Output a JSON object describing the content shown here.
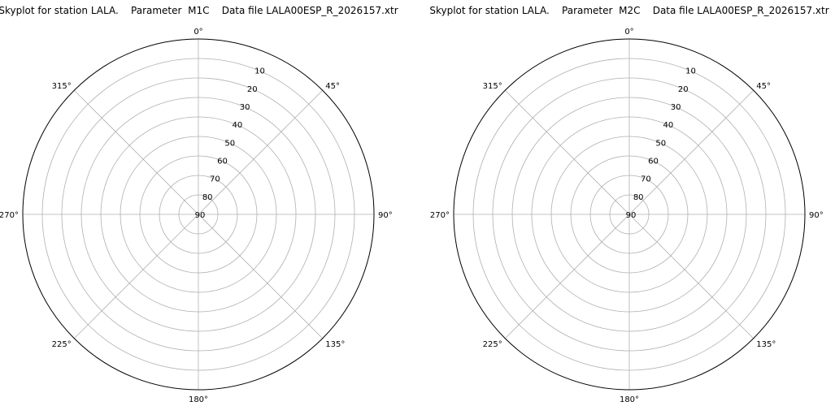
{
  "chart_data": [
    {
      "type": "polar",
      "title": "Skyplot for station LALA.    Parameter  M1C    Data file LALA00ESP_R_2026157.xtr",
      "angle_ticks": [
        "0°",
        "45°",
        "90°",
        "135°",
        "180°",
        "225°",
        "270°",
        "315°"
      ],
      "radial_ticks": [
        "10",
        "20",
        "30",
        "40",
        "50",
        "60",
        "70",
        "80",
        "90"
      ],
      "radial_range": [
        0,
        90
      ],
      "direction": "clockwise",
      "zero_location": "top",
      "grid": true,
      "series": []
    },
    {
      "type": "polar",
      "title": "Skyplot for station LALA.    Parameter  M2C    Data file LALA00ESP_R_2026157.xtr",
      "angle_ticks": [
        "0°",
        "45°",
        "90°",
        "135°",
        "180°",
        "225°",
        "270°",
        "315°"
      ],
      "radial_ticks": [
        "10",
        "20",
        "30",
        "40",
        "50",
        "60",
        "70",
        "80",
        "90"
      ],
      "radial_range": [
        0,
        90
      ],
      "direction": "clockwise",
      "zero_location": "top",
      "grid": true,
      "series": []
    }
  ]
}
